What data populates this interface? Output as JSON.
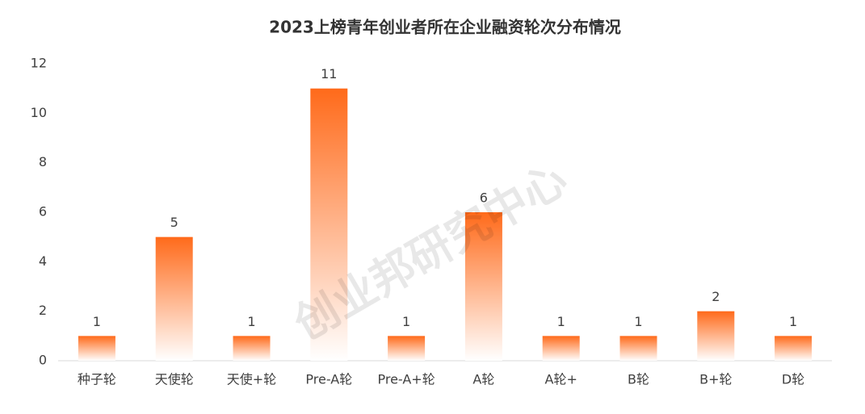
{
  "chart_data": {
    "type": "bar",
    "title": "2023上榜青年创业者所在企业融资轮次分布情况",
    "watermark": "创业邦研究中心",
    "categories": [
      "种子轮",
      "天使轮",
      "天使+轮",
      "Pre-A轮",
      "Pre-A+轮",
      "A轮",
      "A轮+",
      "B轮",
      "B+轮",
      "D轮"
    ],
    "values": [
      1,
      5,
      1,
      11,
      1,
      6,
      1,
      1,
      2,
      1
    ],
    "color": "#ff6a1a",
    "ylim": [
      0,
      12
    ],
    "yticks": [
      0,
      2,
      4,
      6,
      8,
      10,
      12
    ],
    "grid": false,
    "data_labels": true
  }
}
